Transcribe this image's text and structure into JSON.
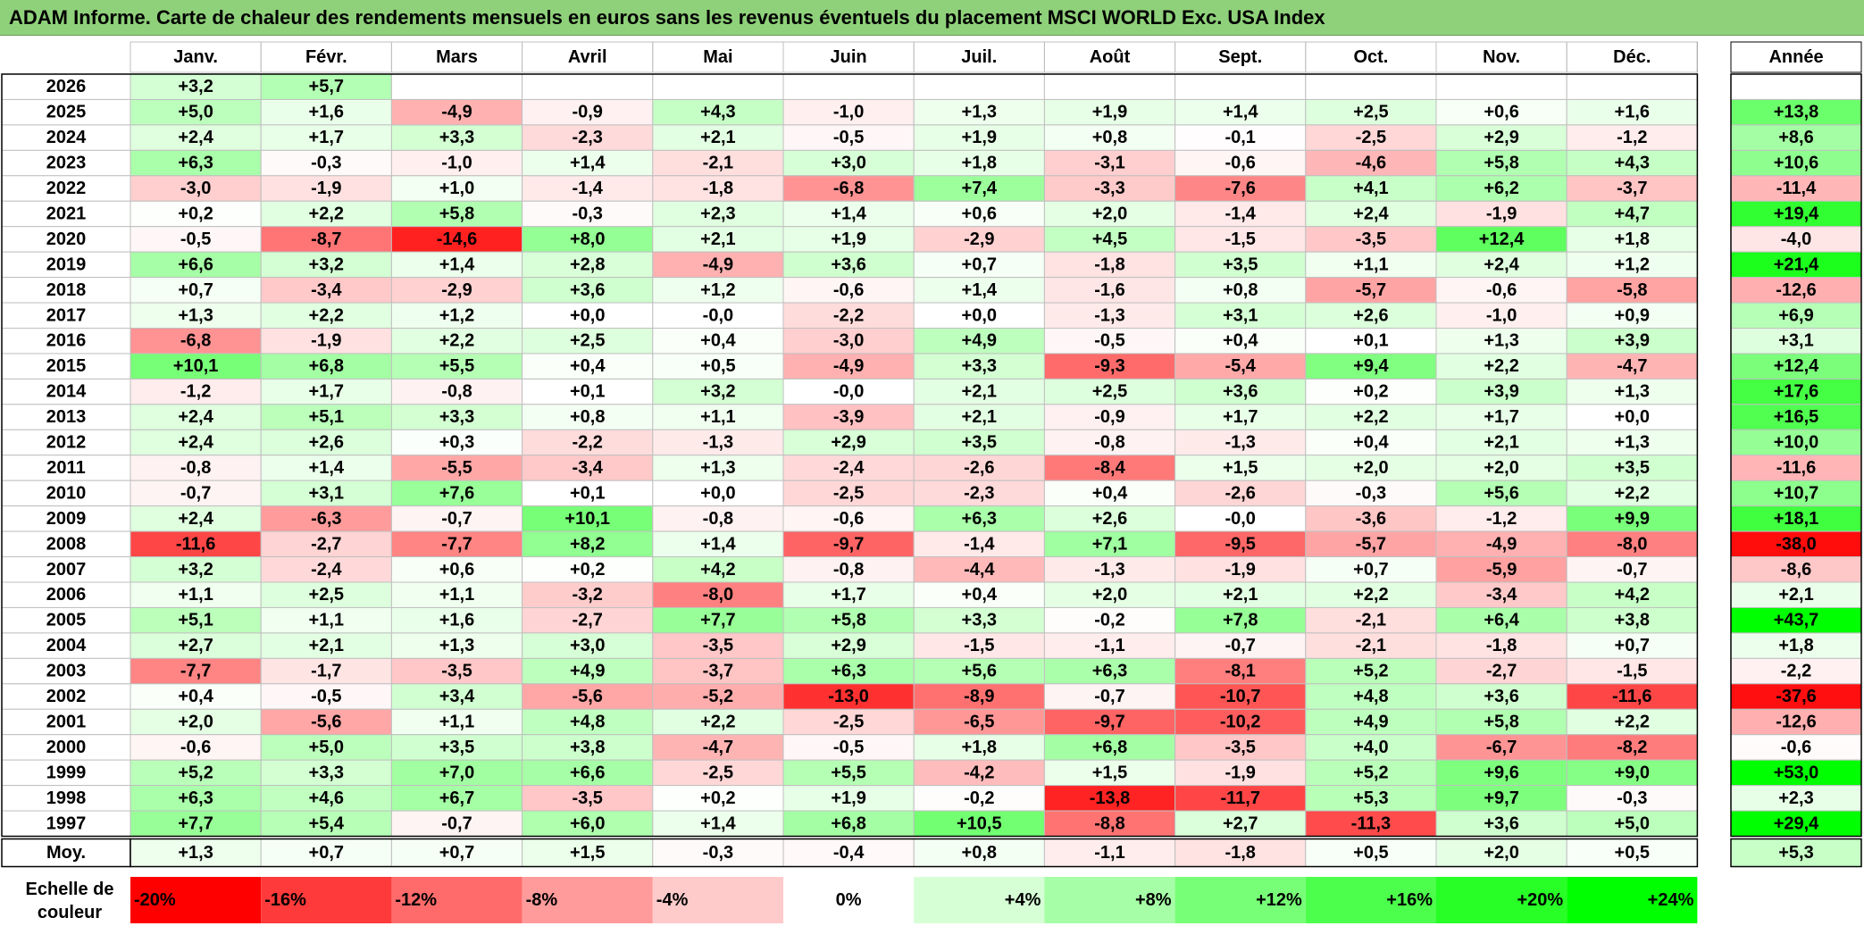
{
  "title": "ADAM Informe. Carte de chaleur des rendements mensuels en euros sans les revenus éventuels du placement MSCI WORLD Exc. USA Index",
  "chart_data": {
    "type": "heatmap",
    "title": "ADAM Informe. Carte de chaleur des rendements mensuels en euros sans les revenus éventuels du placement MSCI WORLD Exc. USA Index",
    "months": [
      "Janv.",
      "Févr.",
      "Mars",
      "Avril",
      "Mai",
      "Juin",
      "Juil.",
      "Août",
      "Sept.",
      "Oct.",
      "Nov.",
      "Déc."
    ],
    "year_header": "Année",
    "rows": [
      {
        "year": "2026",
        "values": [
          "+3,2",
          "+5,7",
          "",
          "",
          "",
          "",
          "",
          "",
          "",
          "",
          "",
          ""
        ],
        "annual": ""
      },
      {
        "year": "2025",
        "values": [
          "+5,0",
          "+1,6",
          "-4,9",
          "-0,9",
          "+4,3",
          "-1,0",
          "+1,3",
          "+1,9",
          "+1,4",
          "+2,5",
          "+0,6",
          "+1,6"
        ],
        "annual": "+13,8"
      },
      {
        "year": "2024",
        "values": [
          "+2,4",
          "+1,7",
          "+3,3",
          "-2,3",
          "+2,1",
          "-0,5",
          "+1,9",
          "+0,8",
          "-0,1",
          "-2,5",
          "+2,9",
          "-1,2"
        ],
        "annual": "+8,6"
      },
      {
        "year": "2023",
        "values": [
          "+6,3",
          "-0,3",
          "-1,0",
          "+1,4",
          "-2,1",
          "+3,0",
          "+1,8",
          "-3,1",
          "-0,6",
          "-4,6",
          "+5,8",
          "+4,3"
        ],
        "annual": "+10,6"
      },
      {
        "year": "2022",
        "values": [
          "-3,0",
          "-1,9",
          "+1,0",
          "-1,4",
          "-1,8",
          "-6,8",
          "+7,4",
          "-3,3",
          "-7,6",
          "+4,1",
          "+6,2",
          "-3,7"
        ],
        "annual": "-11,4"
      },
      {
        "year": "2021",
        "values": [
          "+0,2",
          "+2,2",
          "+5,8",
          "-0,3",
          "+2,3",
          "+1,4",
          "+0,6",
          "+2,0",
          "-1,4",
          "+2,4",
          "-1,9",
          "+4,7"
        ],
        "annual": "+19,4"
      },
      {
        "year": "2020",
        "values": [
          "-0,5",
          "-8,7",
          "-14,6",
          "+8,0",
          "+2,1",
          "+1,9",
          "-2,9",
          "+4,5",
          "-1,5",
          "-3,5",
          "+12,4",
          "+1,8"
        ],
        "annual": "-4,0"
      },
      {
        "year": "2019",
        "values": [
          "+6,6",
          "+3,2",
          "+1,4",
          "+2,8",
          "-4,9",
          "+3,6",
          "+0,7",
          "-1,8",
          "+3,5",
          "+1,1",
          "+2,4",
          "+1,2"
        ],
        "annual": "+21,4"
      },
      {
        "year": "2018",
        "values": [
          "+0,7",
          "-3,4",
          "-2,9",
          "+3,6",
          "+1,2",
          "-0,6",
          "+1,4",
          "-1,6",
          "+0,8",
          "-5,7",
          "-0,6",
          "-5,8"
        ],
        "annual": "-12,6"
      },
      {
        "year": "2017",
        "values": [
          "+1,3",
          "+2,2",
          "+1,2",
          "+0,0",
          "-0,0",
          "-2,2",
          "+0,0",
          "-1,3",
          "+3,1",
          "+2,6",
          "-1,0",
          "+0,9"
        ],
        "annual": "+6,9"
      },
      {
        "year": "2016",
        "values": [
          "-6,8",
          "-1,9",
          "+2,2",
          "+2,5",
          "+0,4",
          "-3,0",
          "+4,9",
          "-0,5",
          "+0,4",
          "+0,1",
          "+1,3",
          "+3,9"
        ],
        "annual": "+3,1"
      },
      {
        "year": "2015",
        "values": [
          "+10,1",
          "+6,8",
          "+5,5",
          "+0,4",
          "+0,5",
          "-4,9",
          "+3,3",
          "-9,3",
          "-5,4",
          "+9,4",
          "+2,2",
          "-4,7"
        ],
        "annual": "+12,4"
      },
      {
        "year": "2014",
        "values": [
          "-1,2",
          "+1,7",
          "-0,8",
          "+0,1",
          "+3,2",
          "-0,0",
          "+2,1",
          "+2,5",
          "+3,6",
          "+0,2",
          "+3,9",
          "+1,3"
        ],
        "annual": "+17,6"
      },
      {
        "year": "2013",
        "values": [
          "+2,4",
          "+5,1",
          "+3,3",
          "+0,8",
          "+1,1",
          "-3,9",
          "+2,1",
          "-0,9",
          "+1,7",
          "+2,2",
          "+1,7",
          "+0,0"
        ],
        "annual": "+16,5"
      },
      {
        "year": "2012",
        "values": [
          "+2,4",
          "+2,6",
          "+0,3",
          "-2,2",
          "-1,3",
          "+2,9",
          "+3,5",
          "-0,8",
          "-1,3",
          "+0,4",
          "+2,1",
          "+1,3"
        ],
        "annual": "+10,0"
      },
      {
        "year": "2011",
        "values": [
          "-0,8",
          "+1,4",
          "-5,5",
          "-3,4",
          "+1,3",
          "-2,4",
          "-2,6",
          "-8,4",
          "+1,5",
          "+2,0",
          "+2,0",
          "+3,5"
        ],
        "annual": "-11,6"
      },
      {
        "year": "2010",
        "values": [
          "-0,7",
          "+3,1",
          "+7,6",
          "+0,1",
          "+0,0",
          "-2,5",
          "-2,3",
          "+0,4",
          "-2,6",
          "-0,3",
          "+5,6",
          "+2,2"
        ],
        "annual": "+10,7"
      },
      {
        "year": "2009",
        "values": [
          "+2,4",
          "-6,3",
          "-0,7",
          "+10,1",
          "-0,8",
          "-0,6",
          "+6,3",
          "+2,6",
          "-0,0",
          "-3,6",
          "-1,2",
          "+9,9"
        ],
        "annual": "+18,1"
      },
      {
        "year": "2008",
        "values": [
          "-11,6",
          "-2,7",
          "-7,7",
          "+8,2",
          "+1,4",
          "-9,7",
          "-1,4",
          "+7,1",
          "-9,5",
          "-5,7",
          "-4,9",
          "-8,0"
        ],
        "annual": "-38,0"
      },
      {
        "year": "2007",
        "values": [
          "+3,2",
          "-2,4",
          "+0,6",
          "+0,2",
          "+4,2",
          "-0,8",
          "-4,4",
          "-1,3",
          "-1,9",
          "+0,7",
          "-5,9",
          "-0,7"
        ],
        "annual": "-8,6"
      },
      {
        "year": "2006",
        "values": [
          "+1,1",
          "+2,5",
          "+1,1",
          "-3,2",
          "-8,0",
          "+1,7",
          "+0,4",
          "+2,0",
          "+2,1",
          "+2,2",
          "-3,4",
          "+4,2"
        ],
        "annual": "+2,1"
      },
      {
        "year": "2005",
        "values": [
          "+5,1",
          "+1,1",
          "+1,6",
          "-2,7",
          "+7,7",
          "+5,8",
          "+3,3",
          "-0,2",
          "+7,8",
          "-2,1",
          "+6,4",
          "+3,8"
        ],
        "annual": "+43,7"
      },
      {
        "year": "2004",
        "values": [
          "+2,7",
          "+2,1",
          "+1,3",
          "+3,0",
          "-3,5",
          "+2,9",
          "-1,5",
          "-1,1",
          "-0,7",
          "-2,1",
          "-1,8",
          "+0,7"
        ],
        "annual": "+1,8"
      },
      {
        "year": "2003",
        "values": [
          "-7,7",
          "-1,7",
          "-3,5",
          "+4,9",
          "-3,7",
          "+6,3",
          "+5,6",
          "+6,3",
          "-8,1",
          "+5,2",
          "-2,7",
          "-1,5"
        ],
        "annual": "-2,2"
      },
      {
        "year": "2002",
        "values": [
          "+0,4",
          "-0,5",
          "+3,4",
          "-5,6",
          "-5,2",
          "-13,0",
          "-8,9",
          "-0,7",
          "-10,7",
          "+4,8",
          "+3,6",
          "-11,6"
        ],
        "annual": "-37,6"
      },
      {
        "year": "2001",
        "values": [
          "+2,0",
          "-5,6",
          "+1,1",
          "+4,8",
          "+2,2",
          "-2,5",
          "-6,5",
          "-9,7",
          "-10,2",
          "+4,9",
          "+5,8",
          "+2,2"
        ],
        "annual": "-12,6"
      },
      {
        "year": "2000",
        "values": [
          "-0,6",
          "+5,0",
          "+3,5",
          "+3,8",
          "-4,7",
          "-0,5",
          "+1,8",
          "+6,8",
          "-3,5",
          "+4,0",
          "-6,7",
          "-8,2"
        ],
        "annual": "-0,6"
      },
      {
        "year": "1999",
        "values": [
          "+5,2",
          "+3,3",
          "+7,0",
          "+6,6",
          "-2,5",
          "+5,5",
          "-4,2",
          "+1,5",
          "-1,9",
          "+5,2",
          "+9,6",
          "+9,0"
        ],
        "annual": "+53,0"
      },
      {
        "year": "1998",
        "values": [
          "+6,3",
          "+4,6",
          "+6,7",
          "-3,5",
          "+0,2",
          "+1,9",
          "-0,2",
          "-13,8",
          "-11,7",
          "+5,3",
          "+9,7",
          "-0,3"
        ],
        "annual": "+2,3"
      },
      {
        "year": "1997",
        "values": [
          "+7,7",
          "+5,4",
          "-0,7",
          "+6,0",
          "+1,4",
          "+6,8",
          "+10,5",
          "-8,8",
          "+2,7",
          "-11,3",
          "+3,6",
          "+5,0"
        ],
        "annual": "+29,4"
      }
    ],
    "average": {
      "label": "Moy.",
      "values": [
        "+1,3",
        "+0,7",
        "+0,7",
        "+1,5",
        "-0,3",
        "-0,4",
        "+0,8",
        "-1,1",
        "-1,8",
        "+0,5",
        "+2,0",
        "+0,5"
      ],
      "annual": "+5,3"
    },
    "scale": {
      "label_line1": "Echelle de",
      "label_line2": "couleur",
      "stops": [
        {
          "label": "-20%",
          "value": -20,
          "color": "#ff0000"
        },
        {
          "label": "-16%",
          "value": -16,
          "color": "#ff3a3a"
        },
        {
          "label": "-12%",
          "value": -12,
          "color": "#ff6b6b"
        },
        {
          "label": "-8%",
          "value": -8,
          "color": "#ff9b9b"
        },
        {
          "label": "-4%",
          "value": -4,
          "color": "#ffcaca"
        },
        {
          "label": "0%",
          "value": 0,
          "color": "#ffffff"
        },
        {
          "label": "+4%",
          "value": 4,
          "color": "#d6ffd6"
        },
        {
          "label": "+8%",
          "value": 8,
          "color": "#a6ffa6"
        },
        {
          "label": "+12%",
          "value": 12,
          "color": "#77ff77"
        },
        {
          "label": "+16%",
          "value": 16,
          "color": "#4cff4c"
        },
        {
          "label": "+20%",
          "value": 20,
          "color": "#27ff27"
        },
        {
          "label": "+24%",
          "value": 24,
          "color": "#00ff00"
        }
      ]
    },
    "colors": {
      "title_bar": "#8fd17a",
      "grid": "#bfbfbf"
    }
  }
}
